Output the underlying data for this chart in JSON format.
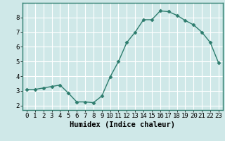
{
  "x": [
    0,
    1,
    2,
    3,
    4,
    5,
    6,
    7,
    8,
    9,
    10,
    11,
    12,
    13,
    14,
    15,
    16,
    17,
    18,
    19,
    20,
    21,
    22,
    23
  ],
  "y": [
    3.1,
    3.1,
    3.2,
    3.3,
    3.4,
    2.85,
    2.25,
    2.25,
    2.2,
    2.65,
    3.95,
    5.0,
    6.3,
    7.0,
    7.85,
    7.85,
    8.45,
    8.4,
    8.15,
    7.8,
    7.5,
    7.0,
    6.3,
    4.9
  ],
  "line_color": "#2e7d6e",
  "marker": "D",
  "marker_size": 2.5,
  "line_width": 1.0,
  "bg_color": "#cfe8e8",
  "grid_color": "#ffffff",
  "xlabel": "Humidex (Indice chaleur)",
  "xlabel_fontsize": 7.5,
  "xlim": [
    -0.5,
    23.5
  ],
  "ylim": [
    1.7,
    9.0
  ],
  "yticks": [
    2,
    3,
    4,
    5,
    6,
    7,
    8
  ],
  "xticks": [
    0,
    1,
    2,
    3,
    4,
    5,
    6,
    7,
    8,
    9,
    10,
    11,
    12,
    13,
    14,
    15,
    16,
    17,
    18,
    19,
    20,
    21,
    22,
    23
  ],
  "tick_fontsize": 6.5
}
